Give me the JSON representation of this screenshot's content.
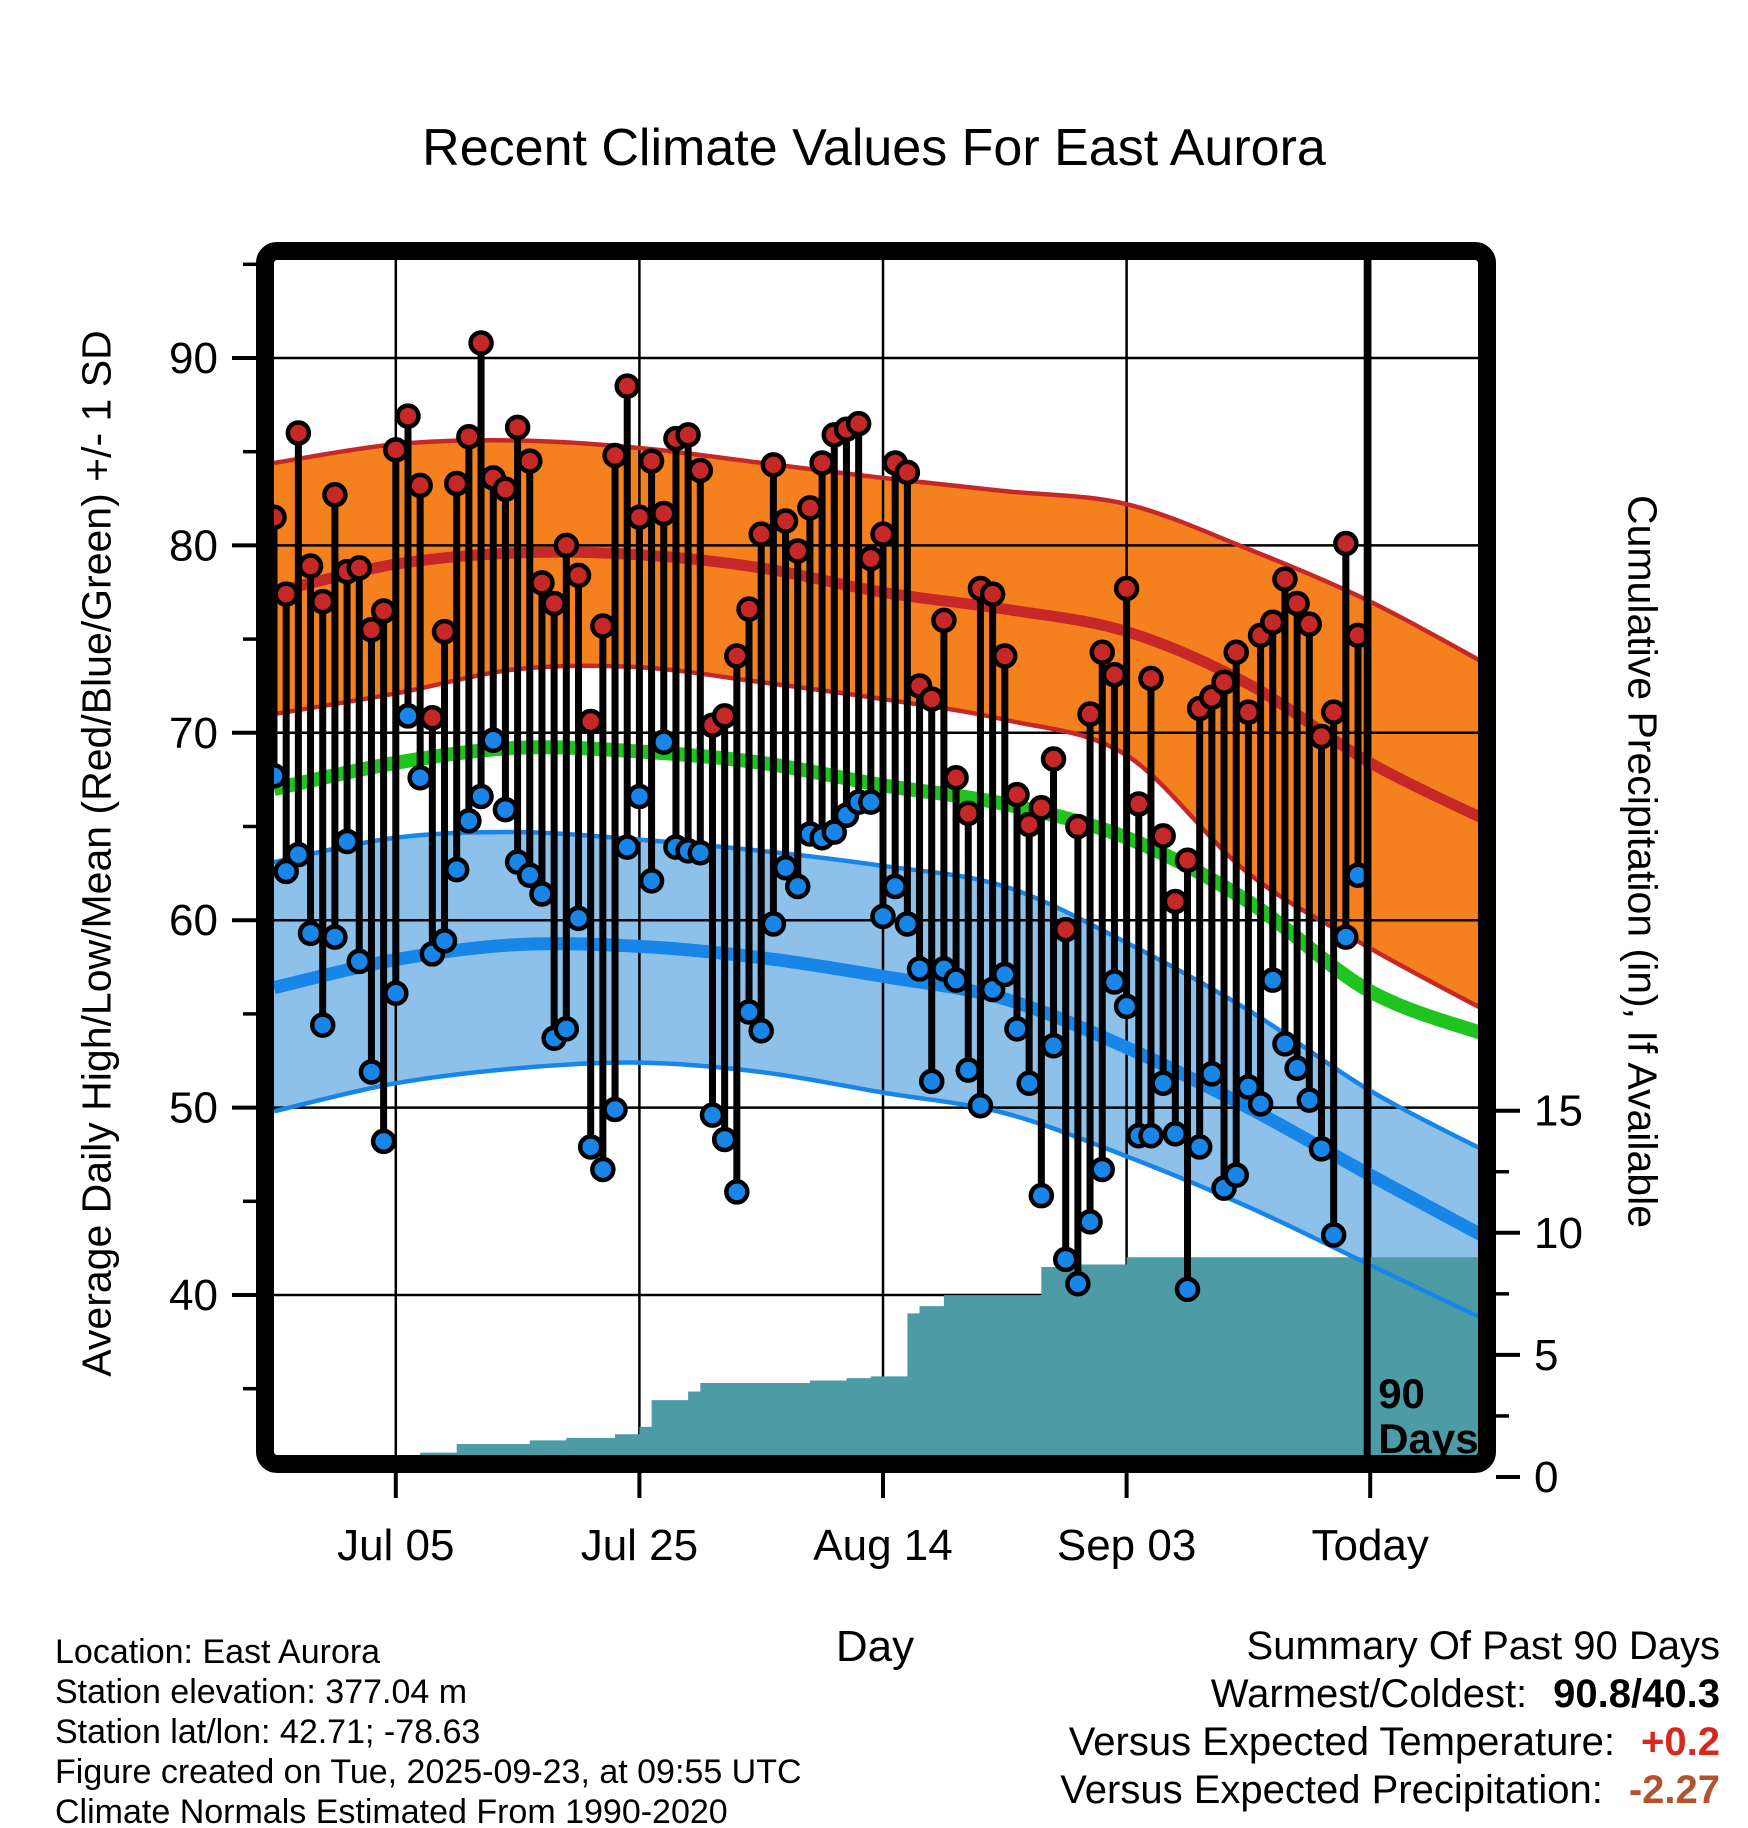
{
  "title": "Recent Climate Values For East Aurora",
  "colors": {
    "high_band_fill": "#F5811E",
    "high_band_edge": "#C62828",
    "high_mean_line": "#C62828",
    "low_band_fill": "#8EC1E9",
    "low_band_edge": "#1786E8",
    "low_mean_line": "#1786E8",
    "mean_green_line": "#1FC41F",
    "precip_fill": "#4D9CA5",
    "high_dot": "#C62828",
    "low_dot": "#1786E8",
    "stem": "#000000",
    "temp_anomaly_value": "#D7281E",
    "precip_anomaly_value": "#B0542E"
  },
  "axes": {
    "x_label": "Day",
    "y_left_label": "Average Daily High/Low/Mean (Red/Blue/Green) +/- 1 SD",
    "y_right_label": "Cumulative Precipitation (in), If Available",
    "x_ticks": [
      {
        "label": "Jul 05",
        "day": 10
      },
      {
        "label": "Jul 25",
        "day": 30
      },
      {
        "label": "Aug 14",
        "day": 50
      },
      {
        "label": "Sep 03",
        "day": 70
      },
      {
        "label": "Today",
        "day": 90
      }
    ],
    "y_left_ticks": [
      90,
      80,
      70,
      60,
      50,
      40
    ],
    "y_left_minor_ticks": [
      95,
      85,
      75,
      65,
      55,
      45,
      35
    ],
    "y_right_ticks": [
      15,
      10,
      5,
      0
    ],
    "y_right_minor_ticks": [
      12.5,
      7.5,
      2.5
    ]
  },
  "chart_data": {
    "type": "combo-climate-stems-bands-area",
    "x_unit": "days since Jun 25 (90-day window ending Sep 23, Today)",
    "start_date_label": "Jun 25",
    "today_day": 90,
    "temp_axis_ticks_f": [
      40,
      50,
      60,
      70,
      80,
      90
    ],
    "precip_axis_ticks_in": [
      0,
      5,
      10,
      15
    ],
    "daily": {
      "high": [
        81.5,
        77.4,
        86.0,
        78.9,
        77.0,
        82.7,
        78.6,
        78.8,
        75.5,
        76.5,
        85.1,
        86.9,
        83.2,
        70.8,
        75.4,
        83.3,
        85.8,
        90.8,
        83.6,
        83.0,
        86.3,
        84.5,
        78.0,
        76.9,
        80.0,
        78.4,
        70.6,
        75.7,
        84.8,
        88.5,
        81.5,
        84.5,
        81.7,
        85.7,
        85.9,
        84.0,
        70.4,
        70.9,
        74.1,
        76.6,
        80.6,
        84.3,
        81.3,
        79.7,
        82.0,
        84.4,
        85.9,
        86.2,
        86.5,
        79.3,
        80.6,
        84.4,
        83.9,
        72.5,
        71.8,
        76.0,
        67.6,
        65.7,
        77.7,
        77.4,
        74.1,
        66.7,
        65.1,
        66.0,
        68.6,
        59.5,
        65.0,
        71.0,
        74.3,
        73.1,
        77.7,
        66.2,
        72.9,
        64.5,
        61.0,
        63.2,
        71.3,
        71.9,
        72.7,
        74.3,
        71.1,
        75.2,
        75.9,
        78.2,
        76.9,
        75.8,
        69.8,
        71.1,
        80.1,
        75.2
      ],
      "low": [
        67.7,
        62.6,
        63.5,
        59.3,
        54.4,
        59.1,
        64.2,
        57.8,
        51.9,
        48.2,
        56.1,
        70.9,
        67.6,
        58.2,
        58.9,
        62.7,
        65.3,
        66.6,
        69.6,
        65.9,
        63.1,
        62.4,
        61.4,
        53.7,
        54.2,
        60.1,
        47.9,
        46.7,
        49.9,
        63.9,
        66.6,
        62.1,
        69.5,
        63.9,
        63.7,
        63.6,
        49.6,
        48.3,
        45.5,
        55.1,
        54.1,
        59.8,
        62.8,
        61.8,
        64.6,
        64.4,
        64.7,
        65.6,
        66.3,
        66.3,
        60.2,
        61.8,
        59.8,
        57.4,
        51.4,
        57.4,
        56.8,
        52.0,
        50.1,
        56.3,
        57.1,
        54.2,
        51.3,
        45.3,
        53.3,
        41.9,
        40.6,
        43.9,
        46.7,
        56.7,
        55.4,
        48.5,
        48.5,
        51.3,
        48.6,
        40.3,
        47.9,
        51.8,
        45.7,
        46.4,
        51.1,
        50.2,
        56.8,
        53.4,
        52.1,
        50.4,
        47.8,
        43.2,
        59.1,
        62.4
      ]
    },
    "climatology_days": [
      0,
      10,
      20,
      30,
      40,
      50,
      60,
      70,
      80,
      90,
      100
    ],
    "climatology": {
      "high_upper": [
        84.4,
        85.4,
        85.6,
        85.2,
        84.4,
        83.6,
        82.9,
        82.2,
        79.8,
        77.0,
        73.5
      ],
      "high_mean": [
        77.5,
        79.0,
        79.6,
        79.5,
        78.8,
        77.5,
        76.6,
        75.4,
        72.6,
        68.4,
        65.2
      ],
      "high_lower": [
        71.0,
        72.1,
        73.4,
        73.5,
        72.7,
        71.8,
        70.7,
        68.8,
        62.5,
        58.5,
        55.0
      ],
      "mean": [
        67.0,
        68.4,
        69.2,
        69.0,
        68.4,
        67.2,
        66.2,
        64.4,
        61.0,
        56.2,
        53.8
      ],
      "low_upper": [
        63.1,
        64.4,
        64.7,
        64.3,
        63.7,
        62.9,
        61.8,
        58.8,
        55.2,
        50.9,
        47.5
      ],
      "low_mean": [
        56.4,
        57.9,
        58.7,
        58.6,
        58.0,
        57.0,
        55.8,
        53.2,
        50.0,
        46.4,
        42.9
      ],
      "low_lower": [
        49.8,
        51.3,
        52.1,
        52.4,
        51.9,
        50.8,
        49.7,
        47.4,
        44.7,
        41.6,
        38.5
      ]
    },
    "precip_cumulative_steps": [
      [
        -2,
        0.02
      ],
      [
        3,
        0.05
      ],
      [
        4,
        0.62
      ],
      [
        7,
        0.9
      ],
      [
        12,
        1.0
      ],
      [
        15,
        1.35
      ],
      [
        21,
        1.5
      ],
      [
        24,
        1.6
      ],
      [
        28,
        1.75
      ],
      [
        30,
        2.05
      ],
      [
        31,
        3.15
      ],
      [
        34,
        3.5
      ],
      [
        35,
        3.85
      ],
      [
        44,
        3.95
      ],
      [
        47,
        4.05
      ],
      [
        49,
        4.12
      ],
      [
        52,
        6.7
      ],
      [
        53,
        7.0
      ],
      [
        55,
        7.45
      ],
      [
        63,
        8.6
      ],
      [
        66,
        8.7
      ],
      [
        70,
        9.0
      ],
      [
        99,
        9.0
      ]
    ],
    "ninety_days_label_lines": [
      "90",
      "Days"
    ]
  },
  "footer": {
    "lines": [
      "Location: East Aurora",
      "Station elevation: 377.04 m",
      "Station lat/lon: 42.71; -78.63",
      "Figure created on Tue, 2025-09-23, at 09:55 UTC",
      "Climate Normals Estimated From 1990-2020"
    ]
  },
  "summary": {
    "heading": "Summary Of Past 90 Days",
    "rows": [
      {
        "label": "Warmest/Coldest:",
        "value": "90.8/40.3",
        "color": "#000000"
      },
      {
        "label": "Versus Expected Temperature:",
        "value": "+0.2",
        "color": "#D7281E"
      },
      {
        "label": "Versus Expected Precipitation:",
        "value": "-2.27",
        "color": "#B0542E"
      }
    ]
  }
}
